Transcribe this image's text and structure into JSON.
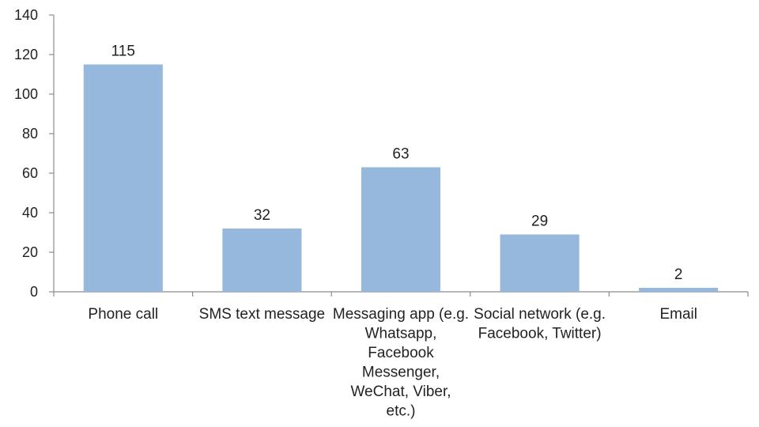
{
  "chart_data": {
    "type": "bar",
    "title": "",
    "xlabel": "",
    "ylabel": "",
    "categories": [
      [
        "Phone call"
      ],
      [
        "SMS text message"
      ],
      [
        "Messaging app (e.g.",
        "Whatsapp,",
        "Facebook",
        "Messenger,",
        "WeChat, Viber,",
        "etc.)"
      ],
      [
        "Social network (e.g.",
        "Facebook, Twitter)"
      ],
      [
        "Email"
      ]
    ],
    "values": [
      115,
      32,
      63,
      29,
      2
    ],
    "ylim": [
      0,
      140
    ],
    "yticks": [
      0,
      20,
      40,
      60,
      80,
      100,
      120,
      140
    ],
    "grid": false,
    "legend": "none",
    "bar_color": "#95b8dc",
    "axis_color": "#8c8c8c"
  }
}
